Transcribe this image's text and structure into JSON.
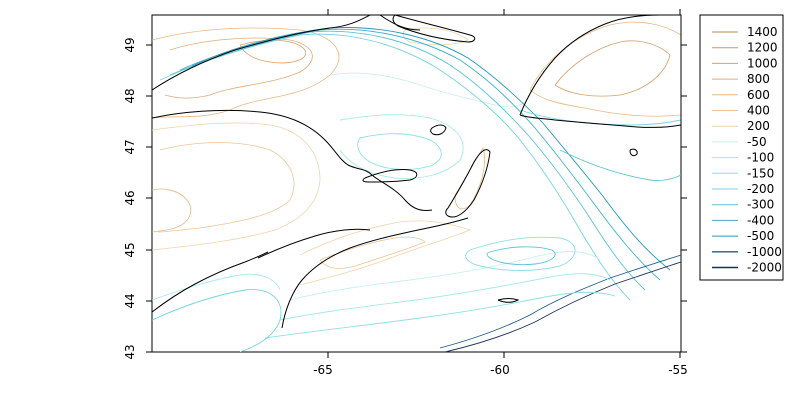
{
  "map": {
    "x_ticks": [
      "-65",
      "-60",
      "-55"
    ],
    "y_ticks": [
      "43",
      "44",
      "45",
      "46",
      "47",
      "48",
      "49"
    ],
    "x_range": [
      -70,
      -55
    ],
    "y_range": [
      43,
      49.6
    ]
  },
  "legend": {
    "items": [
      {
        "label": "1400",
        "color": "#b98a55"
      },
      {
        "label": "1200",
        "color": "#c89563"
      },
      {
        "label": "1000",
        "color": "#d5a16f"
      },
      {
        "label": "800",
        "color": "#deac7a"
      },
      {
        "label": "600",
        "color": "#e6b887"
      },
      {
        "label": "400",
        "color": "#ecc496"
      },
      {
        "label": "200",
        "color": "#f2d3ab"
      },
      {
        "label": "-50",
        "color": "#c8f0ee"
      },
      {
        "label": "-100",
        "color": "#a8e8e8"
      },
      {
        "label": "-150",
        "color": "#8fdfe4"
      },
      {
        "label": "-200",
        "color": "#74d3df"
      },
      {
        "label": "-300",
        "color": "#5ac3d6"
      },
      {
        "label": "-400",
        "color": "#3fb0cb"
      },
      {
        "label": "-500",
        "color": "#2896bb"
      },
      {
        "label": "-1000",
        "color": "#1f5b8a"
      },
      {
        "label": "-2000",
        "color": "#1b2f5c"
      }
    ]
  },
  "colors": {
    "coastline": "#000000",
    "land_contour": "#e6b887",
    "shallow_contour": "#8fdfe4",
    "mid_contour": "#3fb0cb",
    "deep_contour": "#1f5b8a",
    "deepest_contour": "#1b2f5c"
  }
}
